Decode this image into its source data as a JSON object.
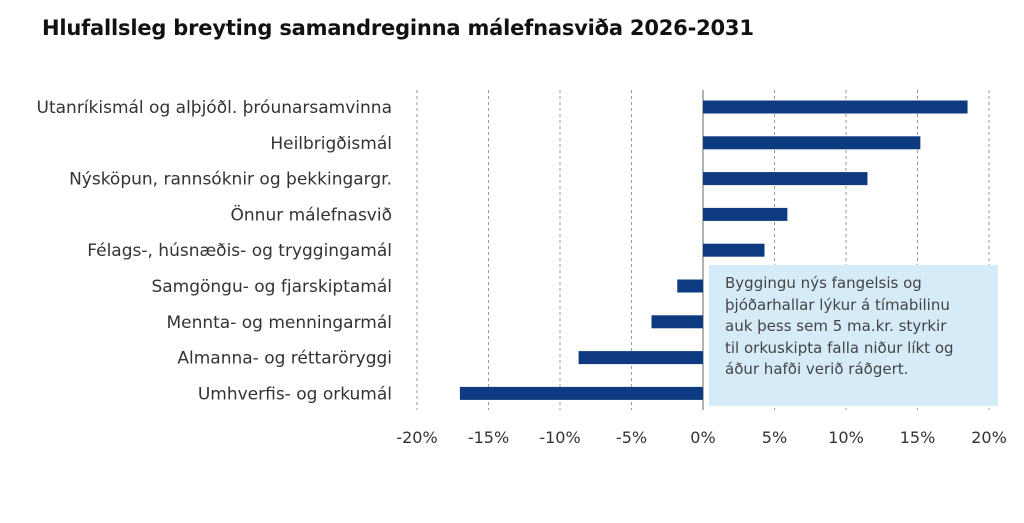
{
  "title": "Hlufallsleg breyting samandreginna málefnasviða 2026-2031",
  "chart_data": {
    "type": "bar",
    "orientation": "horizontal",
    "title": "Hlufallsleg breyting samandreginna málefnasviða 2026-2031",
    "xlabel": "",
    "ylabel": "",
    "unit": "%",
    "xlim": [
      -20,
      20
    ],
    "xticks": [
      "-20%",
      "-15%",
      "-10%",
      "-5%",
      "0%",
      "5%",
      "10%",
      "15%",
      "20%"
    ],
    "grid": "vertical dashed",
    "bar_color": "#0d3a80",
    "categories": [
      "Utanríkismál og alþjóðl. þróunarsamvinna",
      "Heilbrigðismál",
      "Nýsköpun, rannsóknir og þekkingargr.",
      "Önnur málefnasvið",
      "Félags-, húsnæðis- og tryggingamál",
      "Samgöngu- og fjarskiptamál",
      "Mennta- og menningarmál",
      "Almanna- og réttaröryggi",
      "Umhverfis- og orkumál"
    ],
    "values": [
      18.5,
      15.2,
      11.5,
      5.9,
      4.3,
      -1.8,
      -3.6,
      -8.7,
      -17.0
    ],
    "annotation": {
      "lines": [
        "Byggingu nýs fangelsis og",
        "þjóðarhallar lýkur á tímabilinu",
        "auk þess sem 5 ma.kr. styrkir",
        "til orkuskipta falla niður líkt og",
        "áður hafði verið ráðgert."
      ],
      "background": "#d6ebf8"
    }
  }
}
